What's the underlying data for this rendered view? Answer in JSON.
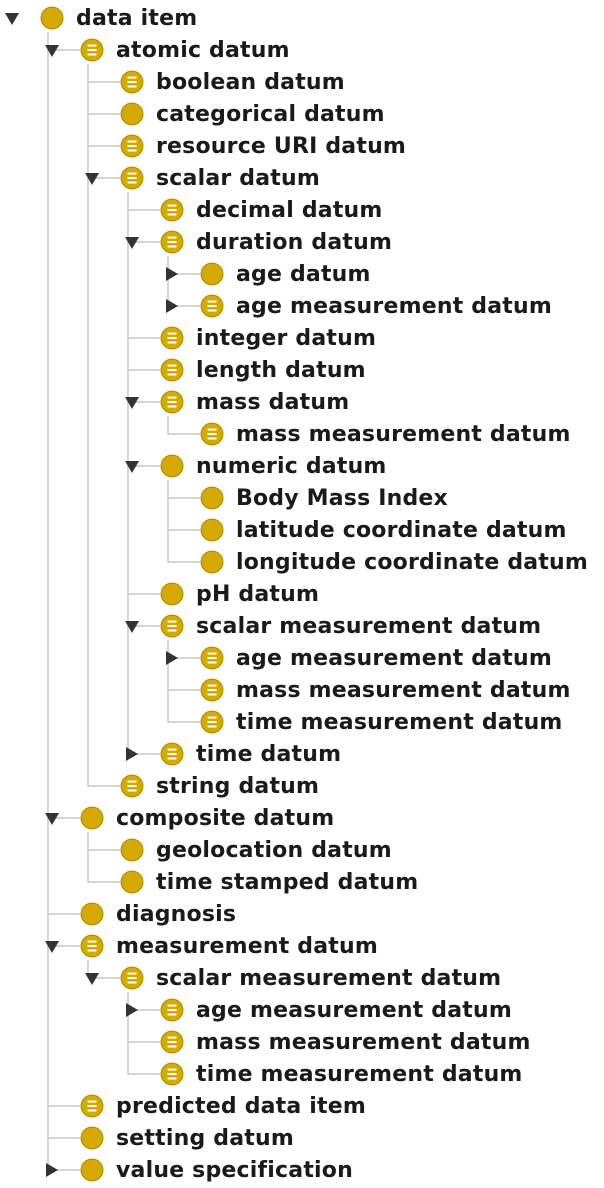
{
  "tree": {
    "rows": [
      {
        "label": "data item",
        "level": 0,
        "state": "expanded",
        "icon": "plain-class-icon"
      },
      {
        "label": "atomic datum",
        "level": 1,
        "state": "expanded",
        "icon": "defined-class-icon"
      },
      {
        "label": "boolean datum",
        "level": 2,
        "state": "leaf",
        "icon": "defined-class-icon"
      },
      {
        "label": "categorical datum",
        "level": 2,
        "state": "leaf",
        "icon": "plain-class-icon"
      },
      {
        "label": "resource URI datum",
        "level": 2,
        "state": "leaf",
        "icon": "defined-class-icon"
      },
      {
        "label": "scalar datum",
        "level": 2,
        "state": "expanded",
        "icon": "defined-class-icon"
      },
      {
        "label": "decimal datum",
        "level": 3,
        "state": "leaf",
        "icon": "defined-class-icon"
      },
      {
        "label": "duration datum",
        "level": 3,
        "state": "expanded",
        "icon": "defined-class-icon"
      },
      {
        "label": "age datum",
        "level": 4,
        "state": "collapsed",
        "icon": "plain-class-icon"
      },
      {
        "label": "age measurement datum",
        "level": 4,
        "state": "collapsed",
        "icon": "defined-class-icon"
      },
      {
        "label": "integer datum",
        "level": 3,
        "state": "leaf",
        "icon": "defined-class-icon"
      },
      {
        "label": "length datum",
        "level": 3,
        "state": "leaf",
        "icon": "defined-class-icon"
      },
      {
        "label": "mass datum",
        "level": 3,
        "state": "expanded",
        "icon": "defined-class-icon"
      },
      {
        "label": "mass measurement datum",
        "level": 4,
        "state": "leaf",
        "icon": "defined-class-icon"
      },
      {
        "label": "numeric datum",
        "level": 3,
        "state": "expanded",
        "icon": "plain-class-icon"
      },
      {
        "label": "Body Mass Index",
        "level": 4,
        "state": "leaf",
        "icon": "plain-class-icon"
      },
      {
        "label": "latitude coordinate datum",
        "level": 4,
        "state": "leaf",
        "icon": "plain-class-icon"
      },
      {
        "label": "longitude coordinate datum",
        "level": 4,
        "state": "leaf",
        "icon": "plain-class-icon"
      },
      {
        "label": "pH datum",
        "level": 3,
        "state": "leaf",
        "icon": "plain-class-icon"
      },
      {
        "label": "scalar measurement datum",
        "level": 3,
        "state": "expanded",
        "icon": "defined-class-icon"
      },
      {
        "label": "age measurement datum",
        "level": 4,
        "state": "collapsed",
        "icon": "defined-class-icon"
      },
      {
        "label": "mass measurement datum",
        "level": 4,
        "state": "leaf",
        "icon": "defined-class-icon"
      },
      {
        "label": "time measurement datum",
        "level": 4,
        "state": "leaf",
        "icon": "defined-class-icon"
      },
      {
        "label": "time datum",
        "level": 3,
        "state": "collapsed",
        "icon": "defined-class-icon"
      },
      {
        "label": "string datum",
        "level": 2,
        "state": "leaf",
        "icon": "defined-class-icon"
      },
      {
        "label": "composite datum",
        "level": 1,
        "state": "expanded",
        "icon": "plain-class-icon"
      },
      {
        "label": "geolocation datum",
        "level": 2,
        "state": "leaf",
        "icon": "plain-class-icon"
      },
      {
        "label": "time stamped datum",
        "level": 2,
        "state": "leaf",
        "icon": "plain-class-icon"
      },
      {
        "label": "diagnosis",
        "level": 1,
        "state": "leaf",
        "icon": "plain-class-icon"
      },
      {
        "label": "measurement datum",
        "level": 1,
        "state": "expanded",
        "icon": "defined-class-icon"
      },
      {
        "label": "scalar measurement datum",
        "level": 2,
        "state": "expanded",
        "icon": "defined-class-icon"
      },
      {
        "label": "age measurement datum",
        "level": 3,
        "state": "collapsed",
        "icon": "defined-class-icon"
      },
      {
        "label": "mass measurement datum",
        "level": 3,
        "state": "leaf",
        "icon": "defined-class-icon"
      },
      {
        "label": "time measurement datum",
        "level": 3,
        "state": "leaf",
        "icon": "defined-class-icon"
      },
      {
        "label": "predicted data item",
        "level": 1,
        "state": "leaf",
        "icon": "defined-class-icon"
      },
      {
        "label": "setting datum",
        "level": 1,
        "state": "leaf",
        "icon": "plain-class-icon"
      },
      {
        "label": "value specification",
        "level": 1,
        "state": "collapsed",
        "icon": "plain-class-icon"
      }
    ]
  },
  "colors": {
    "icon_fill": "#d4aa00",
    "icon_stroke": "#b08c00",
    "icon_lines": "#ffffff",
    "toggle": "#333333",
    "connector": "#c8c8c8",
    "text": "#1a1a1a"
  }
}
